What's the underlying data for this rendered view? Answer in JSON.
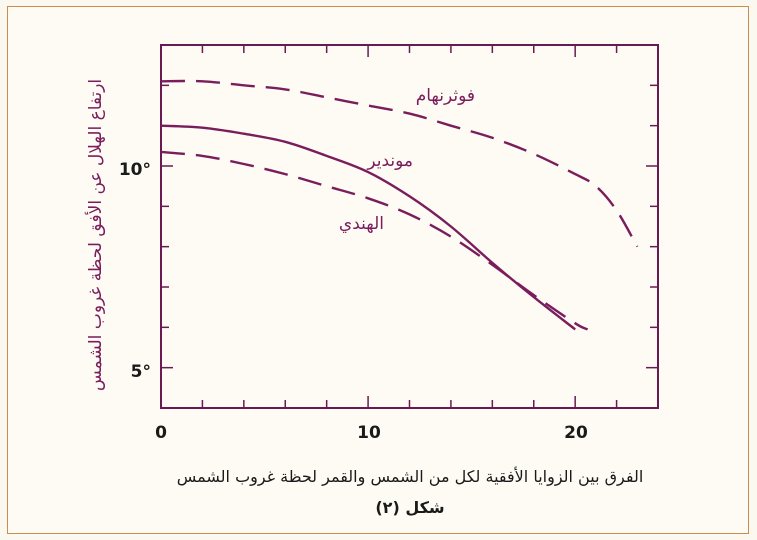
{
  "chart_data": {
    "type": "line",
    "title": "",
    "caption": "شكل (٢)",
    "xlabel": "الفرق بين الزوايا الأفقية لكل من الشمس والقمر لحظة غروب الشمس",
    "ylabel": "ارتفاع الهلال عن الأفق لحظة غروب الشمس",
    "xlim": [
      0,
      24
    ],
    "ylim": [
      4,
      13
    ],
    "x_ticks": [
      0,
      10,
      20
    ],
    "x_tick_labels": [
      "0",
      "10",
      "20"
    ],
    "y_ticks": [
      5,
      10
    ],
    "y_tick_labels": [
      "5°",
      "10°"
    ],
    "grid": false,
    "series": [
      {
        "name": "فوثرنهام",
        "style": "dashed",
        "x": [
          0,
          2,
          4,
          6,
          8,
          10,
          12,
          14,
          16,
          18,
          20,
          21,
          22,
          23
        ],
        "y": [
          12.1,
          12.1,
          12.0,
          11.9,
          11.7,
          11.5,
          11.3,
          11.0,
          10.7,
          10.3,
          9.8,
          9.5,
          8.9,
          8.0
        ]
      },
      {
        "name": "موندير",
        "style": "solid",
        "x": [
          0,
          2,
          4,
          6,
          8,
          10,
          12,
          14,
          16,
          18,
          20
        ],
        "y": [
          11.0,
          10.95,
          10.8,
          10.6,
          10.25,
          9.85,
          9.25,
          8.5,
          7.6,
          6.75,
          5.95
        ]
      },
      {
        "name": "الهندي",
        "style": "dashed",
        "x": [
          0,
          2,
          4,
          6,
          8,
          10,
          12,
          14,
          16,
          18,
          20,
          20.6
        ],
        "y": [
          10.35,
          10.25,
          10.05,
          9.8,
          9.5,
          9.2,
          8.8,
          8.25,
          7.55,
          6.8,
          6.1,
          5.95
        ]
      }
    ],
    "annotations": [
      {
        "text": "فوثرنهام",
        "series": 0
      },
      {
        "text": "موندير",
        "series": 1
      },
      {
        "text": "الهندي",
        "series": 2
      }
    ],
    "colors": {
      "curve": "#7a1d5c",
      "axis": "#6a1a52",
      "frame": "#c98e4f"
    }
  }
}
